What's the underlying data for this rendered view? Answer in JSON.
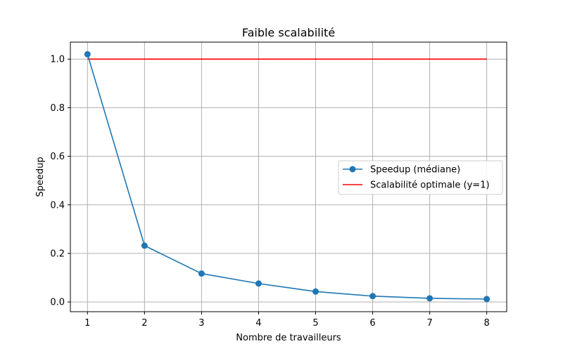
{
  "chart_data": {
    "type": "line",
    "title": "Faible scalabilité",
    "xlabel": "Nombre de travailleurs",
    "ylabel": "Speedup",
    "x": [
      1,
      2,
      3,
      4,
      5,
      6,
      7,
      8
    ],
    "xlim": [
      0.7,
      8.35
    ],
    "ylim": [
      -0.04,
      1.07
    ],
    "xticks": [
      1,
      2,
      3,
      4,
      5,
      6,
      7,
      8
    ],
    "xtick_labels": [
      "1",
      "2",
      "3",
      "4",
      "5",
      "6",
      "7",
      "8"
    ],
    "yticks": [
      0.0,
      0.2,
      0.4,
      0.6,
      0.8,
      1.0
    ],
    "ytick_labels": [
      "0.0",
      "0.2",
      "0.4",
      "0.6",
      "0.8",
      "1.0"
    ],
    "grid": true,
    "legend_position": "center-right",
    "series": [
      {
        "name": "Speedup (médiane)",
        "values": [
          1.02,
          0.232,
          0.117,
          0.076,
          0.043,
          0.024,
          0.015,
          0.012
        ],
        "color": "#1f77b4",
        "marker": "circle"
      },
      {
        "name": "Scalabilité optimale (y=1)",
        "values": [
          1,
          1,
          1,
          1,
          1,
          1,
          1,
          1
        ],
        "color": "#ff0000",
        "marker": "none"
      }
    ]
  }
}
